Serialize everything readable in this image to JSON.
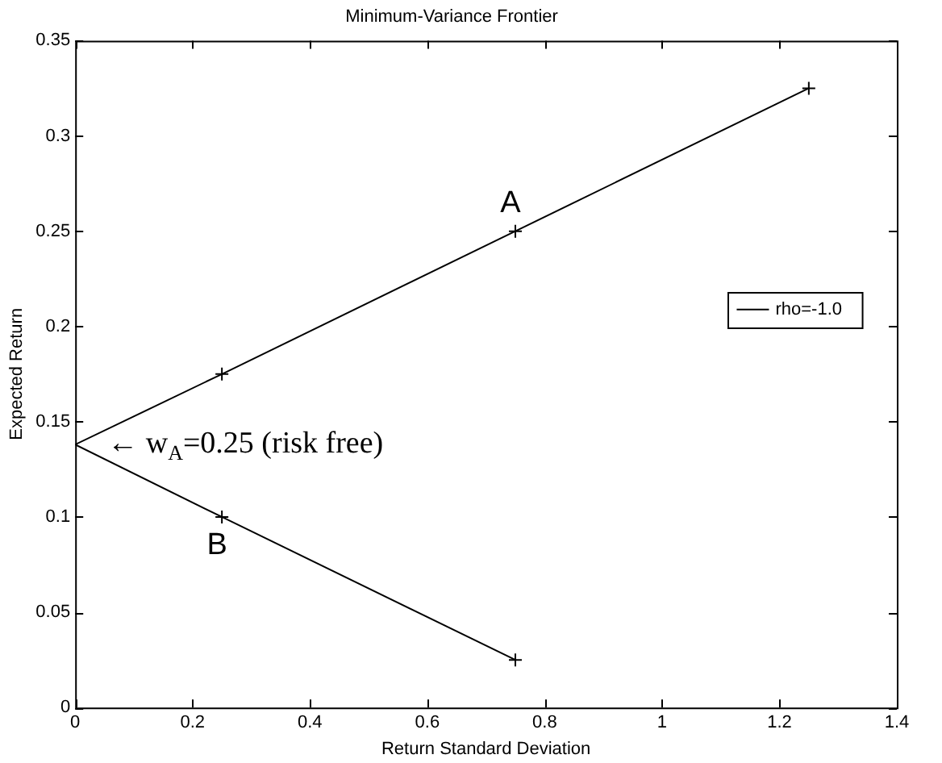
{
  "chart_data": {
    "type": "line",
    "title": "Minimum-Variance Frontier",
    "xlabel": "Return Standard Deviation",
    "ylabel": "Expected Return",
    "xlim": [
      0,
      1.4
    ],
    "xticks": [
      0,
      0.2,
      0.4,
      0.6,
      0.8,
      1,
      1.2,
      1.4
    ],
    "ylim": [
      0,
      0.35
    ],
    "yticks": [
      0,
      0.05,
      0.1,
      0.15,
      0.2,
      0.25,
      0.3,
      0.35
    ],
    "grid": false,
    "legend": "right",
    "series": [
      {
        "name": "rho=-1.0",
        "type": "line",
        "color": "#000000",
        "marker": "none",
        "x": [
          0.75,
          0.25,
          0,
          0.25,
          0.75,
          1.25
        ],
        "values": [
          0.025,
          0.1,
          0.138,
          0.175,
          0.25,
          0.325
        ]
      },
      {
        "type": "scatter",
        "color": "#000000",
        "marker": "cross",
        "x": [
          0.75,
          0.25,
          0.25,
          0.75,
          1.25
        ],
        "values": [
          0.025,
          0.1,
          0.175,
          0.25,
          0.325
        ]
      }
    ],
    "annotations": [
      {
        "text": "A",
        "x": 0.75,
        "y": 0.25
      },
      {
        "text": "B",
        "x": 0.25,
        "y": 0.1
      },
      {
        "text": "← w$_{A}$=0.25 (risk free)",
        "x": 0,
        "y": 0.138
      }
    ]
  }
}
